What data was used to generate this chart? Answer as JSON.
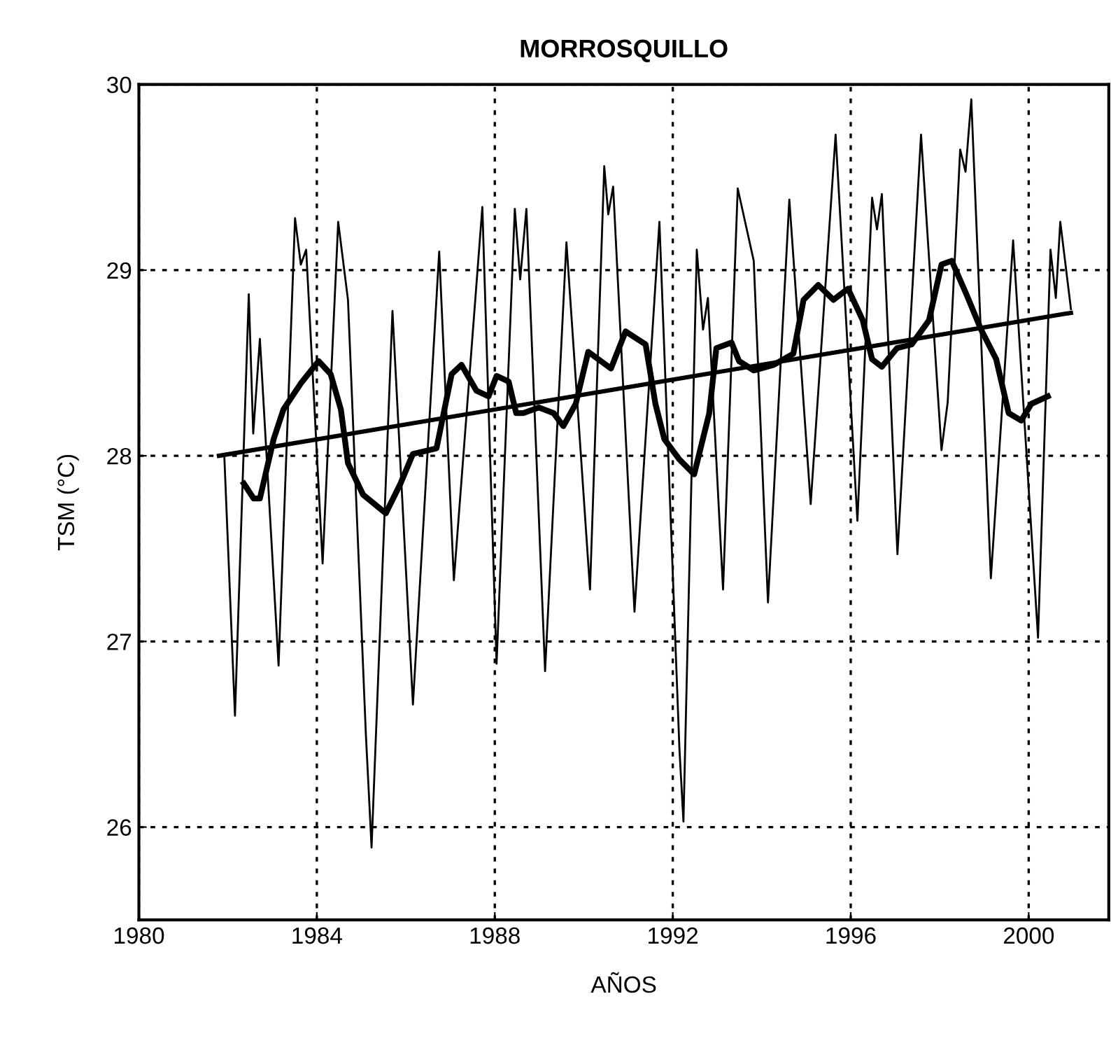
{
  "chart_data": {
    "type": "line",
    "title": "MORROSQUILLO",
    "xlabel": "AÑOS",
    "ylabel": "TSM (°C)",
    "xlim": [
      1980,
      2001.8
    ],
    "ylim": [
      25.5,
      30
    ],
    "xticks": [
      1980,
      1984,
      1988,
      1992,
      1996,
      2000
    ],
    "yticks": [
      26,
      27,
      28,
      29,
      30
    ],
    "grid": true,
    "line_style": "solid",
    "marker": "none",
    "series": [
      {
        "color": "#000000",
        "x": [
          1981.92,
          1982.16,
          1982.47,
          1982.57,
          1982.72,
          1983.14,
          1983.51,
          1983.64,
          1983.76,
          1984.13,
          1984.48,
          1984.7,
          1985.1,
          1985.23,
          1985.7,
          1986.16,
          1986.75,
          1987.08,
          1987.72,
          1988.04,
          1988.45,
          1988.57,
          1988.71,
          1989.13,
          1989.61,
          1990.14,
          1990.46,
          1990.55,
          1990.66,
          1991.14,
          1991.7,
          1992.15,
          1992.24,
          1992.54,
          1992.68,
          1992.79,
          1993.13,
          1993.46,
          1993.82,
          1994.14,
          1994.62,
          1995.1,
          1995.66,
          1996.15,
          1996.48,
          1996.59,
          1996.7,
          1997.05,
          1997.58,
          1998.04,
          1998.18,
          1998.46,
          1998.58,
          1998.71,
          1999.15,
          1999.65,
          2000.21,
          2000.49,
          2000.61,
          2000.71,
          2000.95
        ],
        "values": [
          28.0,
          26.6,
          28.87,
          28.12,
          28.63,
          26.87,
          29.28,
          29.03,
          29.11,
          27.42,
          29.26,
          28.84,
          26.51,
          25.89,
          28.78,
          26.66,
          29.1,
          27.33,
          29.34,
          26.88,
          29.33,
          28.95,
          29.33,
          26.84,
          29.15,
          27.28,
          29.56,
          29.3,
          29.45,
          27.16,
          29.26,
          26.42,
          26.03,
          29.11,
          28.68,
          28.85,
          27.28,
          29.44,
          29.05,
          27.21,
          29.38,
          27.74,
          29.73,
          27.65,
          29.39,
          29.22,
          29.41,
          27.47,
          29.73,
          28.03,
          28.29,
          29.65,
          29.53,
          29.92,
          27.34,
          29.16,
          27.02,
          29.11,
          28.85,
          29.26,
          28.79
        ]
      },
      {
        "color": "#000000",
        "x": [
          1982.36,
          1982.58,
          1982.72,
          1983.03,
          1983.25,
          1983.64,
          1984.04,
          1984.31,
          1984.54,
          1984.7,
          1985.04,
          1985.55,
          1985.88,
          1986.16,
          1986.69,
          1987.03,
          1987.25,
          1987.59,
          1987.86,
          1988.04,
          1988.31,
          1988.48,
          1988.64,
          1988.99,
          1989.32,
          1989.54,
          1989.82,
          1990.1,
          1990.61,
          1990.94,
          1991.39,
          1991.61,
          1991.81,
          1992.15,
          1992.48,
          1992.82,
          1992.98,
          1993.32,
          1993.49,
          1993.82,
          1994.27,
          1994.71,
          1994.94,
          1995.27,
          1995.61,
          1995.94,
          1996.27,
          1996.48,
          1996.7,
          1997.04,
          1997.37,
          1997.76,
          1998.04,
          1998.27,
          1998.6,
          1998.93,
          1999.27,
          1999.55,
          1999.83,
          2000.06,
          2000.43
        ],
        "values": [
          27.85,
          27.77,
          27.77,
          28.09,
          28.25,
          28.39,
          28.51,
          28.44,
          28.25,
          27.96,
          27.79,
          27.69,
          27.85,
          28.01,
          28.04,
          28.44,
          28.49,
          28.35,
          28.32,
          28.43,
          28.4,
          28.23,
          28.23,
          28.26,
          28.23,
          28.16,
          28.28,
          28.56,
          28.47,
          28.67,
          28.6,
          28.28,
          28.09,
          27.98,
          27.9,
          28.23,
          28.58,
          28.61,
          28.51,
          28.46,
          28.49,
          28.55,
          28.84,
          28.92,
          28.84,
          28.9,
          28.73,
          28.52,
          28.48,
          28.58,
          28.6,
          28.73,
          29.03,
          29.05,
          28.87,
          28.68,
          28.52,
          28.23,
          28.19,
          28.28,
          28.32
        ]
      },
      {
        "color": "#000000",
        "x": [
          1981.8,
          2000.95
        ],
        "values": [
          28.0,
          28.77
        ]
      }
    ]
  }
}
